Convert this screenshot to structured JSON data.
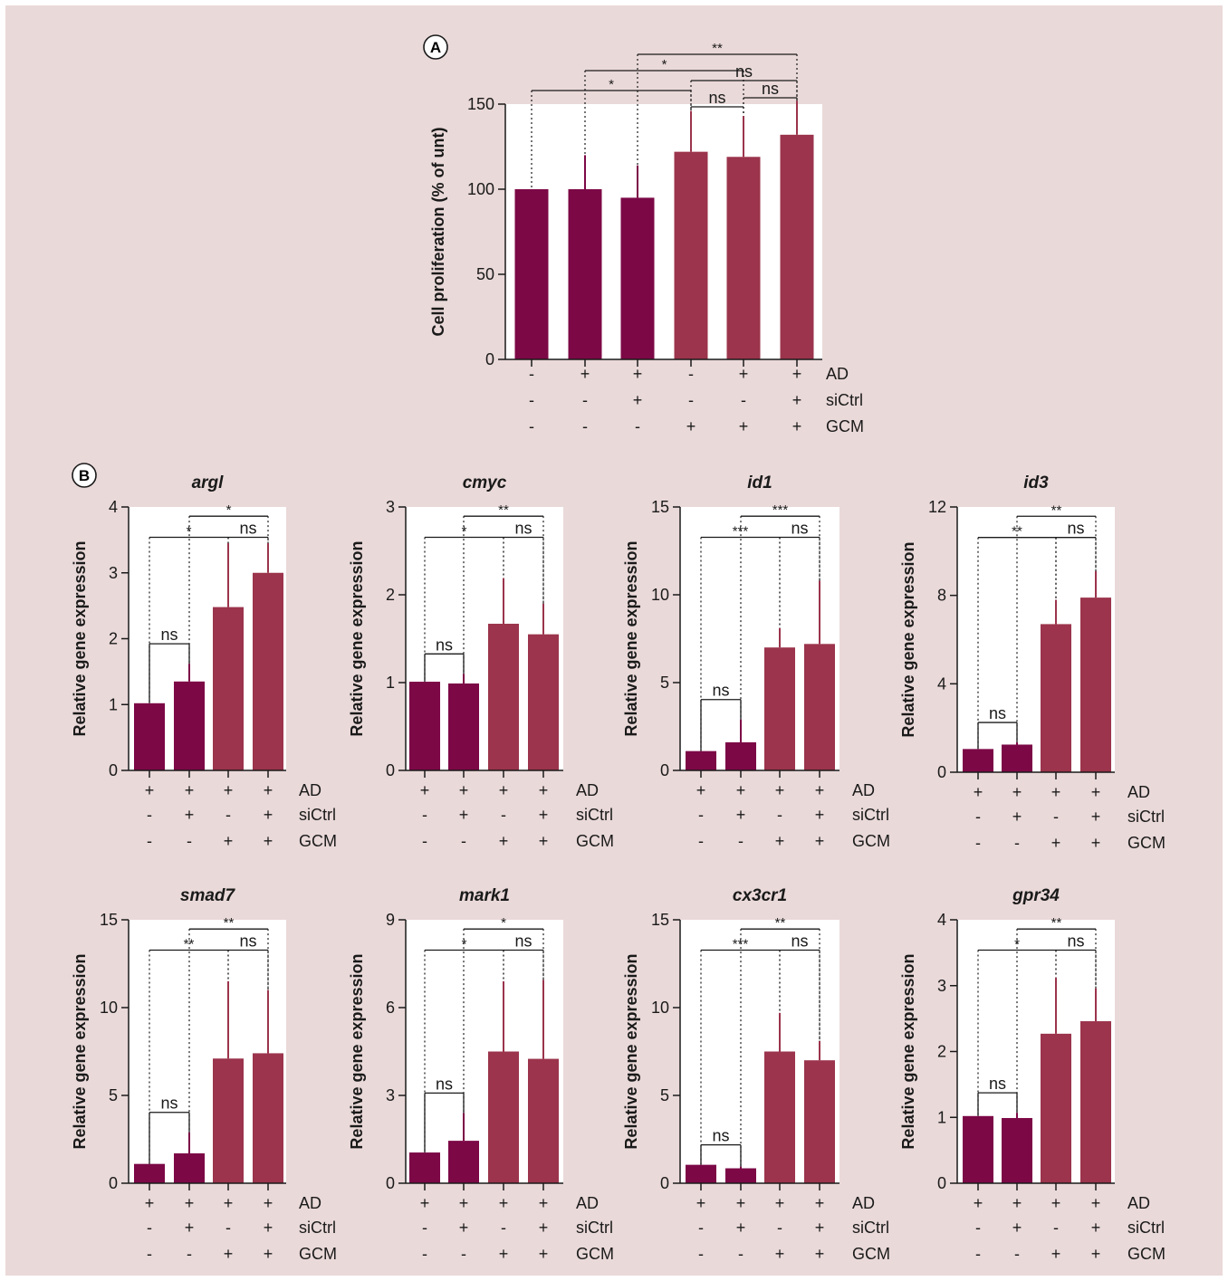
{
  "panels": {
    "a_label": "A",
    "b_label": "B"
  },
  "colors": {
    "dark": "#7c0846",
    "light": "#9b344c",
    "background": "#ead9d9"
  },
  "conditions": {
    "row_labels": [
      "AD",
      "siCtrl",
      "GCM"
    ]
  },
  "chart_data": [
    {
      "id": "A",
      "type": "bar",
      "title": "",
      "ylabel": "Cell proliferation (% of unt)",
      "ylim": [
        0,
        150
      ],
      "yticks": [
        "0",
        "50",
        "100",
        "150"
      ],
      "values": [
        100,
        100,
        95,
        122,
        119,
        132
      ],
      "errors": [
        0,
        20,
        19,
        24,
        24,
        20
      ],
      "colors": [
        "dark",
        "dark",
        "dark",
        "light",
        "light",
        "light"
      ],
      "conditions": [
        [
          "-",
          "+",
          "+",
          "-",
          "+",
          "+"
        ],
        [
          "-",
          "-",
          "+",
          "-",
          "-",
          "+"
        ],
        [
          "-",
          "-",
          "-",
          "+",
          "+",
          "+"
        ]
      ],
      "comparisons": [
        {
          "a": 0,
          "b": 3,
          "label": "*"
        },
        {
          "a": 1,
          "b": 4,
          "label": "*"
        },
        {
          "a": 2,
          "b": 5,
          "label": "**"
        },
        {
          "a": 3,
          "b": 4,
          "label": "ns"
        },
        {
          "a": 4,
          "b": 5,
          "label": "ns"
        },
        {
          "a": 3,
          "b": 5,
          "label": "ns"
        }
      ]
    },
    {
      "id": "argl",
      "type": "bar",
      "title": "argl",
      "ylabel": "Relative gene expression",
      "ylim": [
        0,
        4
      ],
      "yticks": [
        "0",
        "1",
        "2",
        "3",
        "4"
      ],
      "values": [
        1.02,
        1.35,
        2.48,
        3.0
      ],
      "errors": [
        0,
        0.27,
        0.97,
        0.45
      ],
      "colors": [
        "dark",
        "dark",
        "light",
        "light"
      ],
      "conditions": [
        [
          "+",
          "+",
          "+",
          "+"
        ],
        [
          "-",
          "+",
          "-",
          "+"
        ],
        [
          "-",
          "-",
          "+",
          "+"
        ]
      ],
      "comparisons": [
        {
          "a": 0,
          "b": 1,
          "label": "ns"
        },
        {
          "a": 0,
          "b": 2,
          "label": "*"
        },
        {
          "a": 2,
          "b": 3,
          "label": "ns"
        },
        {
          "a": 1,
          "b": 3,
          "label": "*"
        }
      ]
    },
    {
      "id": "cmyc",
      "type": "bar",
      "title": "cmyc",
      "ylabel": "Relative gene expression",
      "ylim": [
        0,
        3
      ],
      "yticks": [
        "0",
        "1",
        "2",
        "3"
      ],
      "values": [
        1.01,
        0.99,
        1.67,
        1.55
      ],
      "errors": [
        0,
        0.11,
        0.52,
        0.35
      ],
      "colors": [
        "dark",
        "dark",
        "light",
        "light"
      ],
      "conditions": [
        [
          "+",
          "+",
          "+",
          "+"
        ],
        [
          "-",
          "+",
          "-",
          "+"
        ],
        [
          "-",
          "-",
          "+",
          "+"
        ]
      ],
      "comparisons": [
        {
          "a": 0,
          "b": 1,
          "label": "ns"
        },
        {
          "a": 0,
          "b": 2,
          "label": "*"
        },
        {
          "a": 2,
          "b": 3,
          "label": "ns"
        },
        {
          "a": 1,
          "b": 3,
          "label": "**"
        }
      ]
    },
    {
      "id": "id1",
      "type": "bar",
      "title": "id1",
      "ylabel": "Relative gene expression",
      "ylim": [
        0,
        15
      ],
      "yticks": [
        "0",
        "5",
        "10",
        "15"
      ],
      "values": [
        1.1,
        1.6,
        7.0,
        7.2
      ],
      "errors": [
        0,
        1.3,
        1.1,
        3.6
      ],
      "colors": [
        "dark",
        "dark",
        "light",
        "light"
      ],
      "conditions": [
        [
          "+",
          "+",
          "+",
          "+"
        ],
        [
          "-",
          "+",
          "-",
          "+"
        ],
        [
          "-",
          "-",
          "+",
          "+"
        ]
      ],
      "comparisons": [
        {
          "a": 0,
          "b": 1,
          "label": "ns"
        },
        {
          "a": 0,
          "b": 2,
          "label": "***"
        },
        {
          "a": 2,
          "b": 3,
          "label": "ns"
        },
        {
          "a": 1,
          "b": 3,
          "label": "***"
        }
      ]
    },
    {
      "id": "id3",
      "type": "bar",
      "title": "id3",
      "ylabel": "Relative gene expression",
      "ylim": [
        0,
        12
      ],
      "yticks": [
        "0",
        "4",
        "8",
        "12"
      ],
      "values": [
        1.05,
        1.25,
        6.7,
        7.9
      ],
      "errors": [
        0,
        0.1,
        1.1,
        1.2
      ],
      "colors": [
        "dark",
        "dark",
        "light",
        "light"
      ],
      "conditions": [
        [
          "+",
          "+",
          "+",
          "+"
        ],
        [
          "-",
          "+",
          "-",
          "+"
        ],
        [
          "-",
          "-",
          "+",
          "+"
        ]
      ],
      "comparisons": [
        {
          "a": 0,
          "b": 1,
          "label": "ns"
        },
        {
          "a": 0,
          "b": 2,
          "label": "**"
        },
        {
          "a": 2,
          "b": 3,
          "label": "ns"
        },
        {
          "a": 1,
          "b": 3,
          "label": "**"
        }
      ]
    },
    {
      "id": "smad7",
      "type": "bar",
      "title": "smad7",
      "ylabel": "Relative gene expression",
      "ylim": [
        0,
        15
      ],
      "yticks": [
        "0",
        "5",
        "10",
        "15"
      ],
      "values": [
        1.1,
        1.7,
        7.1,
        7.4
      ],
      "errors": [
        0,
        1.2,
        4.4,
        3.6
      ],
      "colors": [
        "dark",
        "dark",
        "light",
        "light"
      ],
      "conditions": [
        [
          "+",
          "+",
          "+",
          "+"
        ],
        [
          "-",
          "+",
          "-",
          "+"
        ],
        [
          "-",
          "-",
          "+",
          "+"
        ]
      ],
      "comparisons": [
        {
          "a": 0,
          "b": 1,
          "label": "ns"
        },
        {
          "a": 0,
          "b": 2,
          "label": "**"
        },
        {
          "a": 2,
          "b": 3,
          "label": "ns"
        },
        {
          "a": 1,
          "b": 3,
          "label": "**"
        }
      ]
    },
    {
      "id": "mark1",
      "type": "bar",
      "title": "mark1",
      "ylabel": "Relative gene expression",
      "ylim": [
        0,
        9
      ],
      "yticks": [
        "0",
        "3",
        "6",
        "9"
      ],
      "values": [
        1.05,
        1.45,
        4.5,
        4.25
      ],
      "errors": [
        0,
        0.95,
        2.4,
        2.7
      ],
      "colors": [
        "dark",
        "dark",
        "light",
        "light"
      ],
      "conditions": [
        [
          "+",
          "+",
          "+",
          "+"
        ],
        [
          "-",
          "+",
          "-",
          "+"
        ],
        [
          "-",
          "-",
          "+",
          "+"
        ]
      ],
      "comparisons": [
        {
          "a": 0,
          "b": 1,
          "label": "ns"
        },
        {
          "a": 0,
          "b": 2,
          "label": "*"
        },
        {
          "a": 2,
          "b": 3,
          "label": "ns"
        },
        {
          "a": 1,
          "b": 3,
          "label": "*"
        }
      ]
    },
    {
      "id": "cx3cr1",
      "type": "bar",
      "title": "cx3cr1",
      "ylabel": "Relative gene expression",
      "ylim": [
        0,
        15
      ],
      "yticks": [
        "0",
        "5",
        "10",
        "15"
      ],
      "values": [
        1.05,
        0.85,
        7.5,
        7.0
      ],
      "errors": [
        0,
        0.1,
        2.2,
        1.1
      ],
      "colors": [
        "dark",
        "dark",
        "light",
        "light"
      ],
      "conditions": [
        [
          "+",
          "+",
          "+",
          "+"
        ],
        [
          "-",
          "+",
          "-",
          "+"
        ],
        [
          "-",
          "-",
          "+",
          "+"
        ]
      ],
      "comparisons": [
        {
          "a": 0,
          "b": 1,
          "label": "ns"
        },
        {
          "a": 0,
          "b": 2,
          "label": "***"
        },
        {
          "a": 2,
          "b": 3,
          "label": "ns"
        },
        {
          "a": 1,
          "b": 3,
          "label": "**"
        }
      ]
    },
    {
      "id": "gpr34",
      "type": "bar",
      "title": "gpr34",
      "ylabel": "Relative gene expression",
      "ylim": [
        0,
        4
      ],
      "yticks": [
        "0",
        "1",
        "2",
        "3",
        "4"
      ],
      "values": [
        1.02,
        0.99,
        2.27,
        2.46
      ],
      "errors": [
        0,
        0.08,
        0.85,
        0.5
      ],
      "colors": [
        "dark",
        "dark",
        "light",
        "light"
      ],
      "conditions": [
        [
          "+",
          "+",
          "+",
          "+"
        ],
        [
          "-",
          "+",
          "-",
          "+"
        ],
        [
          "-",
          "-",
          "+",
          "+"
        ]
      ],
      "comparisons": [
        {
          "a": 0,
          "b": 1,
          "label": "ns"
        },
        {
          "a": 0,
          "b": 2,
          "label": "*"
        },
        {
          "a": 2,
          "b": 3,
          "label": "ns"
        },
        {
          "a": 1,
          "b": 3,
          "label": "**"
        }
      ]
    }
  ]
}
